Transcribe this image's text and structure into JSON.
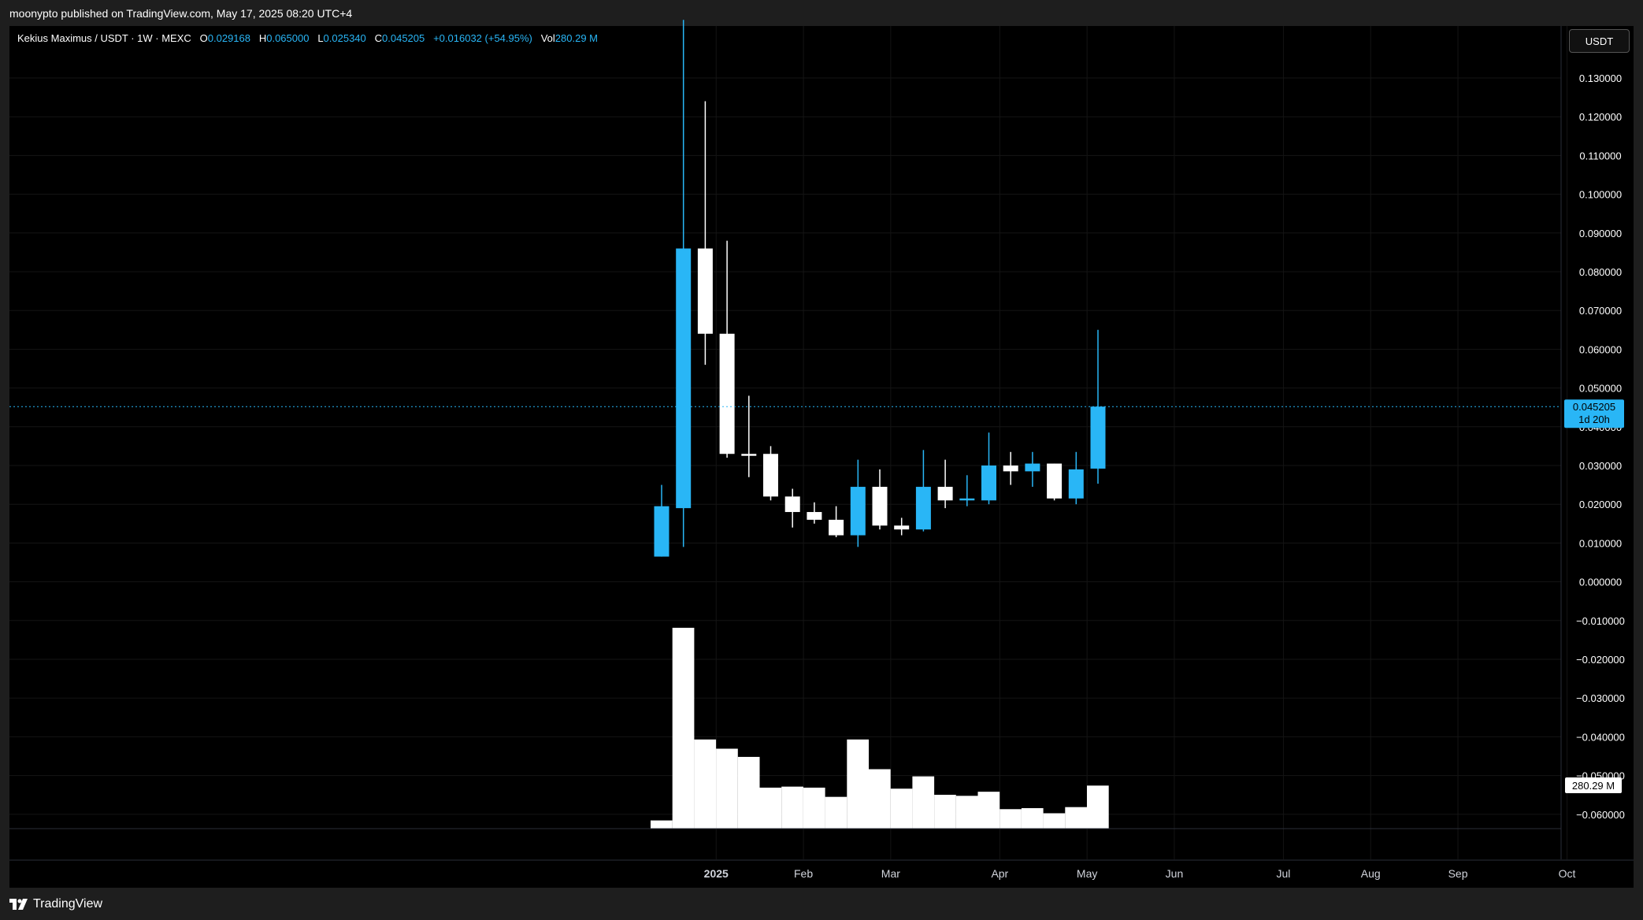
{
  "header": {
    "published_text": "moonypto published on TradingView.com, May 17, 2025 08:20 UTC+4"
  },
  "legend": {
    "symbol": "Kekius Maximus / USDT · 1W · MEXC",
    "open_label": "O",
    "open": "0.029168",
    "high_label": "H",
    "high": "0.065000",
    "low_label": "L",
    "low": "0.025340",
    "close_label": "C",
    "close": "0.045205",
    "change": "+0.016032 (+54.95%)",
    "vol_label": "Vol",
    "vol": "280.29 M"
  },
  "currency_button": "USDT",
  "price_tag": {
    "price": "0.045205",
    "countdown": "1d 20h"
  },
  "volume_tag": "280.29 M",
  "footer": {
    "brand": "TradingView"
  },
  "colors": {
    "up": "#29b6f6",
    "down": "#ffffff",
    "background": "#000000",
    "grid": "#141414",
    "volume": "#ffffff"
  },
  "chart_data": {
    "type": "candlestick",
    "interval": "1W",
    "exchange": "MEXC",
    "y_ticks": [
      "0.130000",
      "0.120000",
      "0.110000",
      "0.100000",
      "0.090000",
      "0.080000",
      "0.070000",
      "0.060000",
      "0.050000",
      "0.040000",
      "0.030000",
      "0.020000",
      "0.010000",
      "0.000000",
      "−0.010000",
      "−0.020000",
      "−0.030000",
      "−0.040000",
      "−0.050000",
      "−0.060000"
    ],
    "y_tick_values": [
      0.13,
      0.12,
      0.11,
      0.1,
      0.09,
      0.08,
      0.07,
      0.06,
      0.05,
      0.04,
      0.03,
      0.02,
      0.01,
      0,
      -0.01,
      -0.02,
      -0.03,
      -0.04,
      -0.05,
      -0.06
    ],
    "ylim": [
      -0.0655,
      0.1435
    ],
    "x_ticks": [
      {
        "label": "2025",
        "bold": true,
        "index": 2.5
      },
      {
        "label": "Feb",
        "index": 6.5
      },
      {
        "label": "Mar",
        "index": 10.5
      },
      {
        "label": "Apr",
        "index": 15.5
      },
      {
        "label": "May",
        "index": 19.5
      },
      {
        "label": "Jun",
        "index": 23.5
      },
      {
        "label": "Jul",
        "index": 28.5
      },
      {
        "label": "Aug",
        "index": 32.5
      },
      {
        "label": "Sep",
        "index": 36.5
      },
      {
        "label": "Oct",
        "index": 41.5
      }
    ],
    "candles": [
      {
        "o": 0.0065,
        "h": 0.025,
        "l": 0.0065,
        "c": 0.0195,
        "v": 8
      },
      {
        "o": 0.019,
        "h": 0.145,
        "l": 0.009,
        "c": 0.086,
        "v": 196
      },
      {
        "o": 0.086,
        "h": 0.124,
        "l": 0.056,
        "c": 0.064,
        "v": 87
      },
      {
        "o": 0.064,
        "h": 0.088,
        "l": 0.032,
        "c": 0.033,
        "v": 78
      },
      {
        "o": 0.033,
        "h": 0.048,
        "l": 0.027,
        "c": 0.0325,
        "v": 70
      },
      {
        "o": 0.033,
        "h": 0.035,
        "l": 0.021,
        "c": 0.022,
        "v": 40
      },
      {
        "o": 0.022,
        "h": 0.024,
        "l": 0.014,
        "c": 0.018,
        "v": 41
      },
      {
        "o": 0.018,
        "h": 0.0205,
        "l": 0.015,
        "c": 0.016,
        "v": 40
      },
      {
        "o": 0.016,
        "h": 0.0195,
        "l": 0.0115,
        "c": 0.012,
        "v": 31
      },
      {
        "o": 0.012,
        "h": 0.0315,
        "l": 0.009,
        "c": 0.0245,
        "v": 87
      },
      {
        "o": 0.0245,
        "h": 0.029,
        "l": 0.0135,
        "c": 0.0145,
        "v": 58
      },
      {
        "o": 0.0145,
        "h": 0.0165,
        "l": 0.012,
        "c": 0.0135,
        "v": 39
      },
      {
        "o": 0.0135,
        "h": 0.034,
        "l": 0.013,
        "c": 0.0245,
        "v": 51
      },
      {
        "o": 0.0245,
        "h": 0.0315,
        "l": 0.019,
        "c": 0.021,
        "v": 33
      },
      {
        "o": 0.021,
        "h": 0.0275,
        "l": 0.0195,
        "c": 0.0215,
        "v": 32
      },
      {
        "o": 0.021,
        "h": 0.0385,
        "l": 0.02,
        "c": 0.03,
        "v": 36
      },
      {
        "o": 0.03,
        "h": 0.0335,
        "l": 0.025,
        "c": 0.0285,
        "v": 19
      },
      {
        "o": 0.0285,
        "h": 0.0335,
        "l": 0.0245,
        "c": 0.0305,
        "v": 20
      },
      {
        "o": 0.0305,
        "h": 0.0305,
        "l": 0.021,
        "c": 0.0215,
        "v": 15
      },
      {
        "o": 0.0215,
        "h": 0.0335,
        "l": 0.02,
        "c": 0.029,
        "v": 21
      },
      {
        "o": 0.0292,
        "h": 0.065,
        "l": 0.0253,
        "c": 0.0452,
        "v": 42
      }
    ]
  }
}
